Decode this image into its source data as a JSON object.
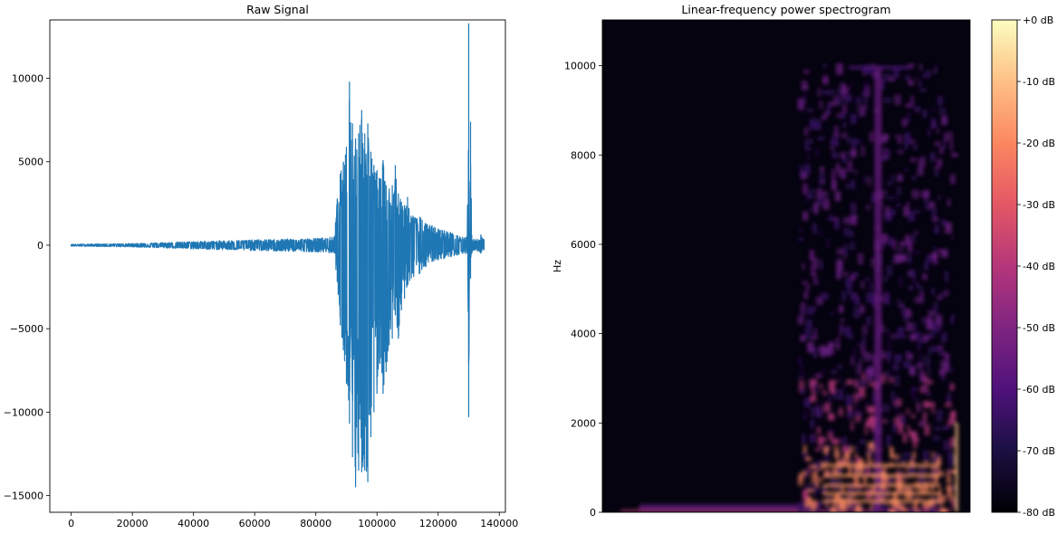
{
  "chart_data": [
    {
      "type": "line",
      "title": "Raw Signal",
      "xlabel": "",
      "ylabel": "",
      "xlim": [
        -7000,
        142000
      ],
      "ylim": [
        -16000,
        13500
      ],
      "x_ticks": [
        0,
        20000,
        40000,
        60000,
        80000,
        100000,
        120000,
        140000
      ],
      "x_tick_labels": [
        "0",
        "20000",
        "40000",
        "60000",
        "80000",
        "100000",
        "120000",
        "140000"
      ],
      "y_ticks": [
        -15000,
        -10000,
        -5000,
        0,
        5000,
        10000
      ],
      "y_tick_labels": [
        "−15000",
        "−10000",
        "−5000",
        "0",
        "5000",
        "10000"
      ],
      "color": "#1f77b4",
      "grid": false,
      "series": [
        {
          "envelope_x": [
            0,
            20000,
            40000,
            60000,
            70000,
            80000,
            86000,
            87000,
            88000,
            89000,
            90000,
            91000,
            92000,
            93000,
            94000,
            95000,
            96000,
            97000,
            98000,
            99000,
            100000,
            101000,
            102000,
            103000,
            104000,
            105000,
            106000,
            107000,
            108000,
            109000,
            110000,
            112000,
            114000,
            116000,
            118000,
            120000,
            122000,
            124000,
            126000,
            128000,
            129500,
            130000,
            130300,
            130600,
            131000,
            132000,
            134000,
            135000
          ],
          "envelope_upper": [
            60,
            110,
            230,
            330,
            380,
            420,
            500,
            2800,
            4300,
            5000,
            5900,
            9800,
            7300,
            6400,
            6700,
            8100,
            6700,
            7300,
            5600,
            4800,
            4500,
            4000,
            5100,
            3600,
            3400,
            3600,
            4800,
            3100,
            2600,
            2400,
            2900,
            1700,
            1700,
            1300,
            1200,
            1000,
            900,
            800,
            600,
            500,
            500,
            13300,
            900,
            7400,
            600,
            300,
            650,
            350
          ],
          "envelope_lower": [
            -60,
            -110,
            -230,
            -330,
            -380,
            -400,
            -500,
            -2200,
            -4800,
            -6300,
            -8300,
            -10700,
            -12700,
            -14500,
            -13500,
            -13600,
            -13500,
            -14200,
            -11500,
            -10000,
            -8900,
            -7100,
            -8900,
            -7600,
            -6000,
            -5600,
            -4200,
            -5600,
            -3900,
            -3200,
            -2400,
            -1900,
            -1700,
            -1300,
            -1000,
            -900,
            -800,
            -700,
            -600,
            -500,
            -500,
            -10300,
            -700,
            -2000,
            -500,
            -300,
            -500,
            -300
          ]
        }
      ]
    },
    {
      "type": "heatmap",
      "title": "Linear-frequency power spectrogram",
      "xlabel": "",
      "ylabel": "Hz",
      "ylim": [
        0,
        11025
      ],
      "y_ticks": [
        0,
        2000,
        4000,
        6000,
        8000,
        10000
      ],
      "y_tick_labels": [
        "0",
        "2000",
        "4000",
        "6000",
        "8000",
        "10000"
      ],
      "x_ticks": [],
      "colormap": "magma",
      "colorbar": {
        "range_db": [
          -80,
          0
        ],
        "ticks": [
          0,
          -10,
          -20,
          -30,
          -40,
          -50,
          -60,
          -70,
          -80
        ],
        "tick_labels": [
          "+0 dB",
          "-10 dB",
          "-20 dB",
          "-30 dB",
          "-40 dB",
          "-50 dB",
          "-60 dB",
          "-70 dB",
          "-80 dB"
        ]
      }
    }
  ]
}
